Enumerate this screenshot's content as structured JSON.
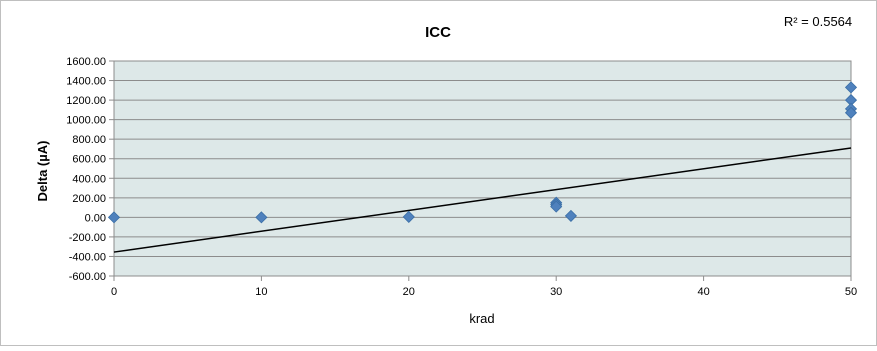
{
  "chart_data": {
    "type": "scatter",
    "title": "ICC",
    "annotation": "R² = 0.5564",
    "xlabel": "krad",
    "ylabel": "Delta (µA)",
    "xlim": [
      0,
      50
    ],
    "ylim": [
      -600,
      1600
    ],
    "xticks": [
      0,
      10,
      20,
      30,
      40,
      50
    ],
    "xtick_labels": [
      "0",
      "10",
      "20",
      "30",
      "40",
      "50"
    ],
    "yticks": [
      -600,
      -400,
      -200,
      0,
      200,
      400,
      600,
      800,
      1000,
      1200,
      1400,
      1600
    ],
    "ytick_labels": [
      "-600.00",
      "-400.00",
      "-200.00",
      "0.00",
      "200.00",
      "400.00",
      "600.00",
      "800.00",
      "1000.00",
      "1200.00",
      "1400.00",
      "1600.00"
    ],
    "grid": true,
    "series": [
      {
        "points": [
          {
            "x": 0,
            "y": 0
          },
          {
            "x": 10,
            "y": 0
          },
          {
            "x": 20,
            "y": 5
          },
          {
            "x": 30,
            "y": 150
          },
          {
            "x": 30,
            "y": 130
          },
          {
            "x": 30,
            "y": 110
          },
          {
            "x": 31,
            "y": 15
          },
          {
            "x": 50,
            "y": 1330
          },
          {
            "x": 50,
            "y": 1200
          },
          {
            "x": 50,
            "y": 1110
          },
          {
            "x": 50,
            "y": 1070
          }
        ]
      }
    ],
    "trendline": {
      "type": "linear",
      "x": [
        0,
        50
      ],
      "y": [
        -355,
        710
      ]
    },
    "colors": {
      "marker": "#4f81bd",
      "plot_background": "#dde8e8",
      "gridline": "#8c8c8c",
      "trendline": "#000000",
      "frame_border": "#bfbfbf"
    }
  }
}
